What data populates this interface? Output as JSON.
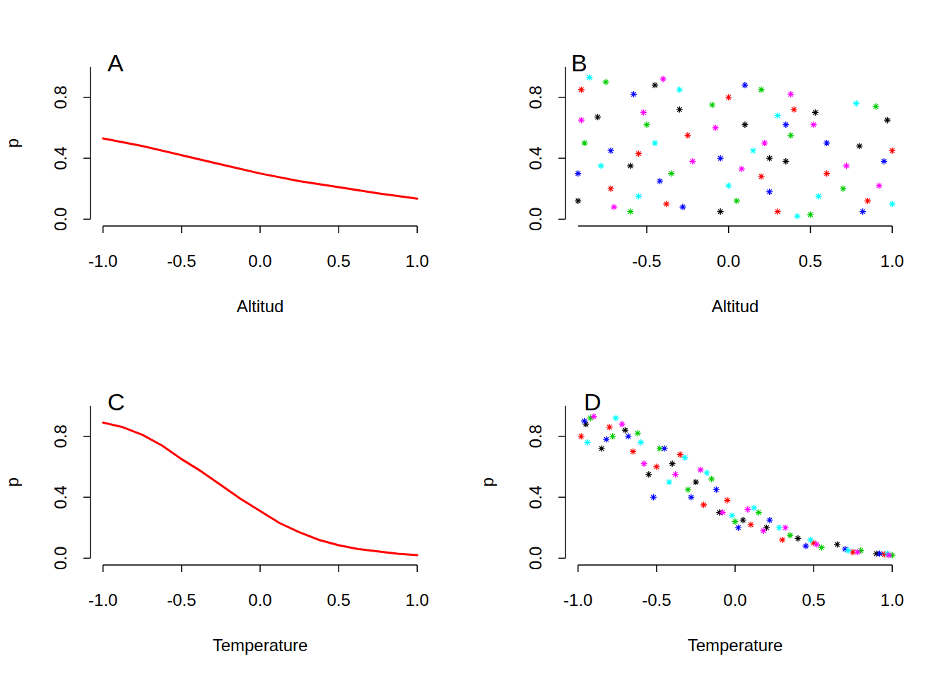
{
  "chart_data": [
    {
      "type": "line",
      "title": "A",
      "xlabel": "Altitud",
      "ylabel": "p",
      "x": [
        -1,
        -0.75,
        -0.5,
        -0.25,
        0,
        0.25,
        0.5,
        0.75,
        1
      ],
      "series": [
        {
          "color": "red",
          "values": [
            0.53,
            0.48,
            0.42,
            0.36,
            0.3,
            0.25,
            0.21,
            0.17,
            0.135
          ]
        }
      ],
      "xlim": [
        -1,
        1
      ],
      "ylim": [
        0,
        1
      ],
      "xticks": [
        {
          "value": -1,
          "label": "-1.0"
        },
        -0.5,
        {
          "value": 0,
          "label": "0.0"
        },
        0.5,
        {
          "value": 1,
          "label": "1.0"
        }
      ],
      "yticks": [
        {
          "value": 0,
          "label": "0.0"
        },
        0.4,
        0.8
      ]
    },
    {
      "type": "scatter",
      "title": "B",
      "xlabel": "Altitud",
      "marker": "asterisk",
      "series": [
        {
          "color": "black",
          "x": [
            -0.92,
            -0.8,
            -0.6,
            -0.45,
            -0.3,
            -0.05,
            0.1,
            0.25,
            0.35,
            0.53,
            0.8,
            0.97
          ],
          "values": [
            0.12,
            0.67,
            0.35,
            0.88,
            0.72,
            0.05,
            0.62,
            0.4,
            0.38,
            0.7,
            0.48,
            0.65
          ]
        },
        {
          "color": "red",
          "x": [
            -0.9,
            -0.72,
            -0.55,
            -0.38,
            -0.25,
            0.0,
            0.2,
            0.3,
            0.4,
            0.6,
            0.85,
            1.0
          ],
          "values": [
            0.85,
            0.2,
            0.43,
            0.1,
            0.55,
            0.8,
            0.28,
            0.05,
            0.72,
            0.3,
            0.12,
            0.45
          ]
        },
        {
          "color": "#00CD00",
          "x": [
            -0.88,
            -0.75,
            -0.6,
            -0.5,
            -0.35,
            -0.1,
            0.05,
            0.2,
            0.38,
            0.5,
            0.7,
            0.9
          ],
          "values": [
            0.5,
            0.9,
            0.05,
            0.62,
            0.3,
            0.75,
            0.12,
            0.85,
            0.55,
            0.03,
            0.2,
            0.74
          ]
        },
        {
          "color": "blue",
          "x": [
            -0.92,
            -0.72,
            -0.58,
            -0.42,
            -0.28,
            -0.05,
            0.1,
            0.25,
            0.35,
            0.6,
            0.82,
            0.95
          ],
          "values": [
            0.3,
            0.45,
            0.82,
            0.25,
            0.08,
            0.4,
            0.88,
            0.18,
            0.62,
            0.5,
            0.05,
            0.38
          ]
        },
        {
          "color": "cyan",
          "x": [
            -0.85,
            -0.78,
            -0.55,
            -0.45,
            -0.3,
            0.0,
            0.15,
            0.3,
            0.42,
            0.55,
            0.78,
            1.0
          ],
          "values": [
            0.93,
            0.35,
            0.15,
            0.5,
            0.85,
            0.22,
            0.45,
            0.68,
            0.02,
            0.15,
            0.76,
            0.1
          ]
        },
        {
          "color": "magenta",
          "x": [
            -0.9,
            -0.7,
            -0.52,
            -0.4,
            -0.22,
            -0.08,
            0.08,
            0.22,
            0.38,
            0.52,
            0.72,
            0.92
          ],
          "values": [
            0.65,
            0.08,
            0.7,
            0.92,
            0.38,
            0.6,
            0.33,
            0.5,
            0.82,
            0.62,
            0.35,
            0.22
          ]
        }
      ],
      "xlim": [
        -0.92,
        1
      ],
      "ylim": [
        0,
        1
      ],
      "xticks": [
        -0.5,
        {
          "value": 0,
          "label": "0.0"
        },
        0.5,
        {
          "value": 1,
          "label": "1.0"
        }
      ],
      "yticks": [
        {
          "value": 0,
          "label": "0.0"
        },
        0.4,
        0.8
      ]
    },
    {
      "type": "line",
      "title": "C",
      "xlabel": "Temperature",
      "ylabel": "p",
      "x": [
        -1,
        -0.875,
        -0.75,
        -0.625,
        -0.5,
        -0.375,
        -0.25,
        -0.125,
        0,
        0.125,
        0.25,
        0.375,
        0.5,
        0.625,
        0.75,
        0.875,
        1
      ],
      "series": [
        {
          "color": "red",
          "values": [
            0.89,
            0.86,
            0.81,
            0.74,
            0.65,
            0.57,
            0.48,
            0.39,
            0.31,
            0.23,
            0.17,
            0.12,
            0.085,
            0.06,
            0.045,
            0.03,
            0.02
          ]
        }
      ],
      "xlim": [
        -1,
        1
      ],
      "ylim": [
        0,
        1
      ],
      "xticks": [
        {
          "value": -1,
          "label": "-1.0"
        },
        -0.5,
        {
          "value": 0,
          "label": "0.0"
        },
        0.5,
        {
          "value": 1,
          "label": "1.0"
        }
      ],
      "yticks": [
        {
          "value": 0,
          "label": "0.0"
        },
        0.4,
        0.8
      ]
    },
    {
      "type": "scatter",
      "title": "D",
      "xlabel": "Temperature",
      "ylabel": "p",
      "marker": "asterisk",
      "series": [
        {
          "color": "black",
          "x": [
            -0.95,
            -0.85,
            -0.7,
            -0.55,
            -0.4,
            -0.25,
            -0.1,
            0.05,
            0.2,
            0.4,
            0.65,
            0.9
          ],
          "values": [
            0.88,
            0.72,
            0.84,
            0.55,
            0.62,
            0.5,
            0.3,
            0.25,
            0.2,
            0.13,
            0.09,
            0.03
          ]
        },
        {
          "color": "red",
          "x": [
            -0.98,
            -0.8,
            -0.65,
            -0.5,
            -0.35,
            -0.2,
            -0.05,
            0.1,
            0.3,
            0.5,
            0.75,
            0.95
          ],
          "values": [
            0.8,
            0.86,
            0.7,
            0.6,
            0.68,
            0.35,
            0.38,
            0.22,
            0.12,
            0.1,
            0.04,
            0.025
          ]
        },
        {
          "color": "#00CD00",
          "x": [
            -0.92,
            -0.78,
            -0.62,
            -0.48,
            -0.3,
            -0.15,
            0.0,
            0.15,
            0.35,
            0.55,
            0.8,
            1.0
          ],
          "values": [
            0.92,
            0.8,
            0.82,
            0.72,
            0.45,
            0.52,
            0.24,
            0.3,
            0.15,
            0.07,
            0.05,
            0.02
          ]
        },
        {
          "color": "blue",
          "x": [
            -0.96,
            -0.82,
            -0.68,
            -0.52,
            -0.45,
            -0.28,
            -0.12,
            0.02,
            0.22,
            0.45,
            0.7,
            0.92
          ],
          "values": [
            0.9,
            0.78,
            0.8,
            0.4,
            0.72,
            0.4,
            0.45,
            0.2,
            0.25,
            0.08,
            0.06,
            0.03
          ]
        },
        {
          "color": "cyan",
          "x": [
            -0.94,
            -0.76,
            -0.6,
            -0.42,
            -0.32,
            -0.18,
            -0.02,
            0.12,
            0.28,
            0.48,
            0.72,
            0.97
          ],
          "values": [
            0.76,
            0.92,
            0.76,
            0.5,
            0.66,
            0.56,
            0.28,
            0.33,
            0.2,
            0.12,
            0.05,
            0.03
          ]
        },
        {
          "color": "magenta",
          "x": [
            -0.9,
            -0.72,
            -0.58,
            -0.38,
            -0.22,
            -0.08,
            0.08,
            0.18,
            0.32,
            0.52,
            0.78,
            0.98
          ],
          "values": [
            0.93,
            0.88,
            0.62,
            0.55,
            0.58,
            0.3,
            0.32,
            0.18,
            0.2,
            0.09,
            0.04,
            0.02
          ]
        }
      ],
      "xlim": [
        -1,
        1
      ],
      "ylim": [
        0,
        1
      ],
      "xticks": [
        {
          "value": -1,
          "label": "-1.0"
        },
        -0.5,
        {
          "value": 0,
          "label": "0.0"
        },
        0.5,
        {
          "value": 1,
          "label": "1.0"
        }
      ],
      "yticks": [
        {
          "value": 0,
          "label": "0.0"
        },
        0.4,
        0.8
      ]
    }
  ]
}
